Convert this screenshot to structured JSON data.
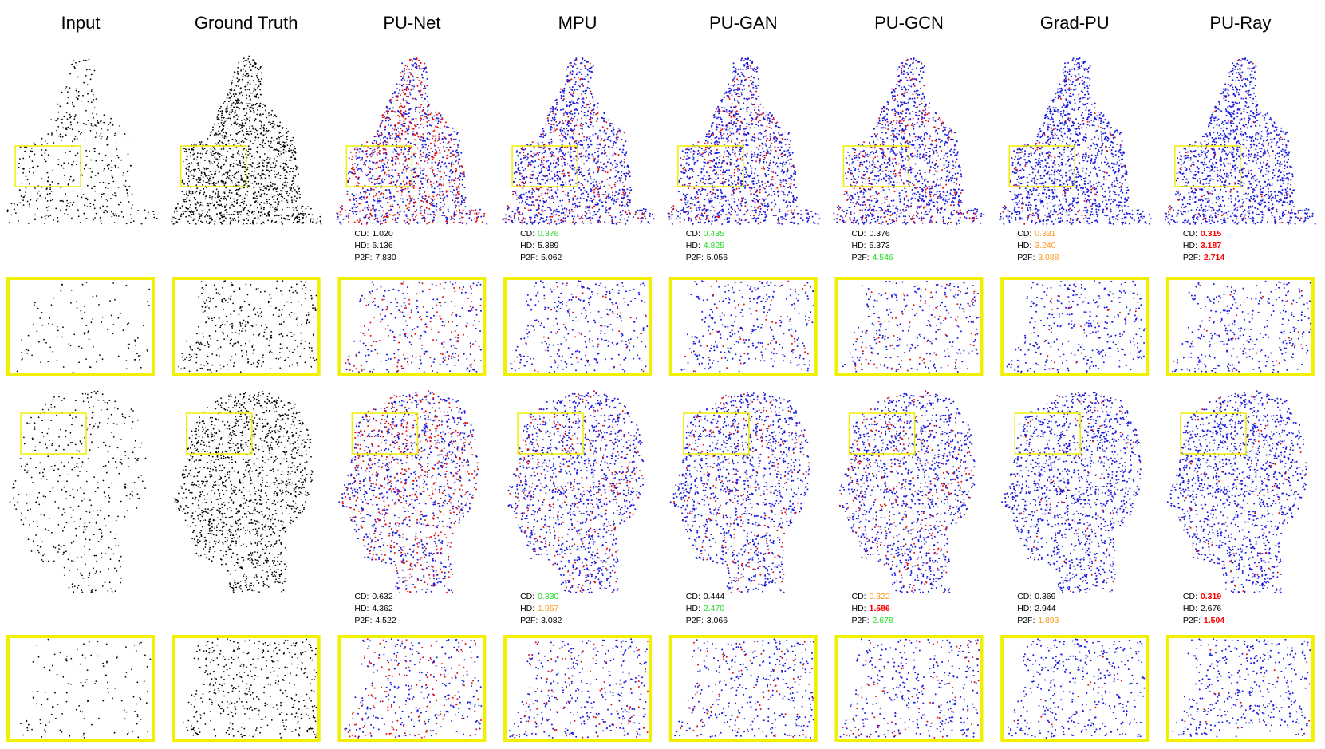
{
  "columns": [
    "Input",
    "Ground Truth",
    "PU-Net",
    "MPU",
    "PU-GAN",
    "PU-GCN",
    "Grad-PU",
    "PU-Ray"
  ],
  "metric_labels": [
    "CD:",
    "HD:",
    "P2F:"
  ],
  "rows": [
    {
      "metrics": [
        [
          {
            "text": "1.020",
            "color": "#000000"
          },
          {
            "text": "6.136",
            "color": "#000000"
          },
          {
            "text": "7.830",
            "color": "#000000"
          }
        ],
        [
          {
            "text": "0.376",
            "color": "#22dd22"
          },
          {
            "text": "5.389",
            "color": "#000000"
          },
          {
            "text": "5.062",
            "color": "#000000"
          }
        ],
        [
          {
            "text": "0.435",
            "color": "#22dd22"
          },
          {
            "text": "4.825",
            "color": "#22dd22"
          },
          {
            "text": "5.056",
            "color": "#000000"
          }
        ],
        [
          {
            "text": "0.376",
            "color": "#000000"
          },
          {
            "text": "5.373",
            "color": "#000000"
          },
          {
            "text": "4.546",
            "color": "#22dd22"
          }
        ],
        [
          {
            "text": "0.331",
            "color": "#ff9922"
          },
          {
            "text": "3.240",
            "color": "#ff9922"
          },
          {
            "text": "3.088",
            "color": "#ff9922"
          }
        ],
        [
          {
            "text": "0.315",
            "color": "#ff0000",
            "weight": "bold"
          },
          {
            "text": "3.187",
            "color": "#ff0000",
            "weight": "bold"
          },
          {
            "text": "2.714",
            "color": "#ff0000",
            "weight": "bold"
          }
        ]
      ]
    },
    {
      "metrics": [
        [
          {
            "text": "0.632",
            "color": "#000000"
          },
          {
            "text": "4.362",
            "color": "#000000"
          },
          {
            "text": "4.522",
            "color": "#000000"
          }
        ],
        [
          {
            "text": "0.330",
            "color": "#22dd22"
          },
          {
            "text": "1.957",
            "color": "#ff9922"
          },
          {
            "text": "3.082",
            "color": "#000000"
          }
        ],
        [
          {
            "text": "0.444",
            "color": "#000000"
          },
          {
            "text": "2.470",
            "color": "#22dd22"
          },
          {
            "text": "3.066",
            "color": "#000000"
          }
        ],
        [
          {
            "text": "0.322",
            "color": "#ff9922"
          },
          {
            "text": "1.586",
            "color": "#ff0000",
            "weight": "bold"
          },
          {
            "text": "2.678",
            "color": "#22dd22"
          }
        ],
        [
          {
            "text": "0.369",
            "color": "#000000"
          },
          {
            "text": "2.944",
            "color": "#000000"
          },
          {
            "text": "1.893",
            "color": "#ff9922"
          }
        ],
        [
          {
            "text": "0.319",
            "color": "#ff0000",
            "weight": "bold"
          },
          {
            "text": "2.676",
            "color": "#000000"
          },
          {
            "text": "1.504",
            "color": "#ff0000",
            "weight": "bold"
          }
        ]
      ]
    }
  ]
}
